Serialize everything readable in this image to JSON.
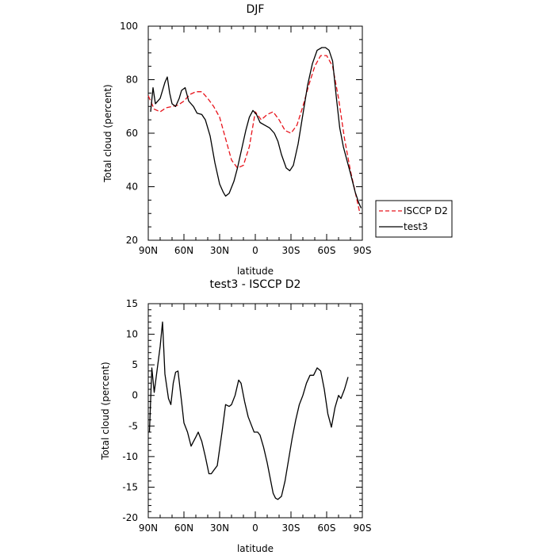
{
  "chart_data": [
    {
      "type": "line",
      "title": "DJF",
      "xlabel": "latitude",
      "ylabel": "Total cloud (percent)",
      "x_ticks": [
        90,
        60,
        30,
        0,
        -30,
        -60,
        -90
      ],
      "x_tick_labels": [
        "90N",
        "60N",
        "30N",
        "0",
        "30S",
        "60S",
        "90S"
      ],
      "xlim": [
        90,
        -90
      ],
      "ylim": [
        20,
        100
      ],
      "y_ticks": [
        20,
        40,
        60,
        80,
        100
      ],
      "y_tick_labels": [
        "20",
        "40",
        "60",
        "80",
        "100"
      ],
      "grid": false,
      "legend_position": "outside-right",
      "series": [
        {
          "name": "ISCCP D2",
          "style": "dashed",
          "color": "#e8141c",
          "points": [
            [
              90,
              74
            ],
            [
              85,
              69
            ],
            [
              80,
              68
            ],
            [
              75,
              69.5
            ],
            [
              70,
              70
            ],
            [
              65,
              70.5
            ],
            [
              60,
              72
            ],
            [
              55,
              74.5
            ],
            [
              50,
              75.5
            ],
            [
              45,
              75.5
            ],
            [
              40,
              73
            ],
            [
              35,
              70
            ],
            [
              30,
              66
            ],
            [
              25,
              58
            ],
            [
              20,
              50
            ],
            [
              15,
              47
            ],
            [
              10,
              48
            ],
            [
              5,
              55
            ],
            [
              0,
              68
            ],
            [
              -5,
              65
            ],
            [
              -10,
              67
            ],
            [
              -15,
              68
            ],
            [
              -20,
              65
            ],
            [
              -25,
              61
            ],
            [
              -30,
              60
            ],
            [
              -35,
              63
            ],
            [
              -40,
              70
            ],
            [
              -45,
              78
            ],
            [
              -50,
              85
            ],
            [
              -55,
              89
            ],
            [
              -60,
              89
            ],
            [
              -65,
              85
            ],
            [
              -70,
              73
            ],
            [
              -75,
              58
            ],
            [
              -80,
              46
            ],
            [
              -85,
              36
            ],
            [
              -88,
              30
            ]
          ]
        },
        {
          "name": "test3",
          "style": "solid",
          "color": "#000000",
          "points": [
            [
              88,
              68
            ],
            [
              86,
              77
            ],
            [
              84,
              71
            ],
            [
              80,
              73
            ],
            [
              76,
              79
            ],
            [
              74,
              81
            ],
            [
              72,
              75
            ],
            [
              70,
              71
            ],
            [
              67,
              70
            ],
            [
              64,
              73
            ],
            [
              62,
              76
            ],
            [
              59,
              77
            ],
            [
              56,
              72
            ],
            [
              52,
              70
            ],
            [
              49,
              67.5
            ],
            [
              45,
              67
            ],
            [
              42,
              65
            ],
            [
              38,
              59
            ],
            [
              34,
              49
            ],
            [
              30,
              41
            ],
            [
              27,
              38
            ],
            [
              25,
              36.5
            ],
            [
              22,
              37.5
            ],
            [
              18,
              42
            ],
            [
              15,
              47
            ],
            [
              12,
              53
            ],
            [
              8,
              61
            ],
            [
              5,
              66
            ],
            [
              2,
              68.5
            ],
            [
              -1,
              67
            ],
            [
              -4,
              64
            ],
            [
              -8,
              63
            ],
            [
              -12,
              62
            ],
            [
              -16,
              60
            ],
            [
              -19,
              57
            ],
            [
              -22,
              52
            ],
            [
              -26,
              47
            ],
            [
              -29,
              46
            ],
            [
              -32,
              48
            ],
            [
              -36,
              56
            ],
            [
              -40,
              67
            ],
            [
              -44,
              78
            ],
            [
              -48,
              86
            ],
            [
              -52,
              91
            ],
            [
              -56,
              92
            ],
            [
              -59,
              92
            ],
            [
              -62,
              91
            ],
            [
              -65,
              87
            ],
            [
              -68,
              74
            ],
            [
              -71,
              62
            ],
            [
              -74,
              55
            ],
            [
              -77,
              50
            ],
            [
              -80,
              45
            ],
            [
              -84,
              38
            ],
            [
              -87,
              34
            ],
            [
              -89,
              32
            ]
          ]
        }
      ]
    },
    {
      "type": "line",
      "title": "test3 - ISCCP D2",
      "xlabel": "latitude",
      "ylabel": "Total cloud (percent)",
      "x_ticks": [
        90,
        60,
        30,
        0,
        -30,
        -60,
        -90
      ],
      "x_tick_labels": [
        "90N",
        "60N",
        "30N",
        "0",
        "30S",
        "60S",
        "90S"
      ],
      "xlim": [
        90,
        -90
      ],
      "ylim": [
        -20,
        15
      ],
      "y_ticks": [
        -20,
        -15,
        -10,
        -5,
        0,
        5,
        10,
        15
      ],
      "y_tick_labels": [
        "-20",
        "-15",
        "-10",
        "-5",
        "0",
        "5",
        "10",
        "15"
      ],
      "grid": false,
      "series": [
        {
          "style": "solid",
          "color": "#000000",
          "points": [
            [
              89,
              -6
            ],
            [
              87,
              4.5
            ],
            [
              85,
              0.5
            ],
            [
              83,
              3.5
            ],
            [
              80,
              8
            ],
            [
              78,
              12
            ],
            [
              76,
              3.5
            ],
            [
              73,
              -0.5
            ],
            [
              71,
              -1.5
            ],
            [
              69,
              2
            ],
            [
              67,
              3.8
            ],
            [
              65,
              4
            ],
            [
              62,
              -1
            ],
            [
              60,
              -4.5
            ],
            [
              57,
              -6
            ],
            [
              54,
              -8.3
            ],
            [
              50,
              -6.8
            ],
            [
              48,
              -6
            ],
            [
              45,
              -7.5
            ],
            [
              42,
              -10
            ],
            [
              39,
              -12.8
            ],
            [
              37,
              -12.8
            ],
            [
              34,
              -12
            ],
            [
              32,
              -11.5
            ],
            [
              28,
              -6
            ],
            [
              25,
              -1.5
            ],
            [
              22,
              -1.8
            ],
            [
              20,
              -1.5
            ],
            [
              17,
              0
            ],
            [
              14,
              2.5
            ],
            [
              12,
              2
            ],
            [
              9,
              -1
            ],
            [
              6,
              -3.5
            ],
            [
              3,
              -5
            ],
            [
              1,
              -6
            ],
            [
              -2,
              -6
            ],
            [
              -4,
              -6.5
            ],
            [
              -7,
              -8.5
            ],
            [
              -10,
              -11
            ],
            [
              -13,
              -14
            ],
            [
              -15,
              -16
            ],
            [
              -17,
              -16.8
            ],
            [
              -19,
              -17
            ],
            [
              -22,
              -16.5
            ],
            [
              -25,
              -14
            ],
            [
              -28,
              -10.5
            ],
            [
              -31,
              -7
            ],
            [
              -34,
              -4
            ],
            [
              -37,
              -1.5
            ],
            [
              -40,
              0
            ],
            [
              -43,
              2
            ],
            [
              -46,
              3.3
            ],
            [
              -49,
              3.3
            ],
            [
              -52,
              4.5
            ],
            [
              -55,
              4
            ],
            [
              -58,
              1
            ],
            [
              -61,
              -3
            ],
            [
              -64,
              -5.2
            ],
            [
              -67,
              -2
            ],
            [
              -70,
              0
            ],
            [
              -72,
              -0.5
            ],
            [
              -75,
              1
            ],
            [
              -78,
              3
            ]
          ]
        }
      ]
    }
  ],
  "legend": [
    {
      "label": "ISCCP D2",
      "color": "#e8141c",
      "style": "dashed"
    },
    {
      "label": "test3",
      "color": "#000000",
      "style": "solid"
    }
  ]
}
